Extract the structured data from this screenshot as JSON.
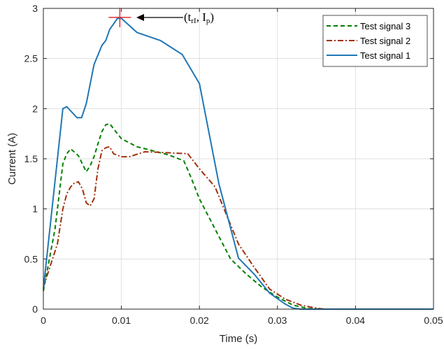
{
  "chart_data": {
    "type": "line",
    "title": "",
    "xlabel": "Time (s)",
    "ylabel": "Current (A)",
    "xlim": [
      0,
      0.05
    ],
    "ylim": [
      0,
      3
    ],
    "xticks": [
      0,
      0.01,
      0.02,
      0.03,
      0.04,
      0.05
    ],
    "xtick_labels": [
      "0",
      "0.01",
      "0.02",
      "0.03",
      "0.04",
      "0.05"
    ],
    "yticks": [
      0,
      0.5,
      1,
      1.5,
      2,
      2.5,
      3
    ],
    "ytick_labels": [
      "0",
      "0.5",
      "1",
      "1.5",
      "2",
      "2.5",
      "3"
    ],
    "grid": true,
    "legend_position": "top-right",
    "series": [
      {
        "name": "Test signal 3",
        "color": "#008000",
        "line_style": "dashed",
        "points": [
          [
            0,
            0.18
          ],
          [
            0.0015,
            0.8
          ],
          [
            0.0025,
            1.45
          ],
          [
            0.003,
            1.55
          ],
          [
            0.0035,
            1.6
          ],
          [
            0.0045,
            1.53
          ],
          [
            0.0055,
            1.37
          ],
          [
            0.006,
            1.43
          ],
          [
            0.0065,
            1.52
          ],
          [
            0.007,
            1.65
          ],
          [
            0.0075,
            1.77
          ],
          [
            0.008,
            1.84
          ],
          [
            0.0085,
            1.85
          ],
          [
            0.009,
            1.8
          ],
          [
            0.01,
            1.7
          ],
          [
            0.012,
            1.62
          ],
          [
            0.014,
            1.58
          ],
          [
            0.016,
            1.54
          ],
          [
            0.018,
            1.48
          ],
          [
            0.019,
            1.3
          ],
          [
            0.02,
            1.1
          ],
          [
            0.022,
            0.8
          ],
          [
            0.024,
            0.5
          ],
          [
            0.026,
            0.35
          ],
          [
            0.028,
            0.22
          ],
          [
            0.03,
            0.12
          ],
          [
            0.032,
            0.04
          ],
          [
            0.034,
            0.005
          ],
          [
            0.036,
            0
          ],
          [
            0.05,
            0
          ]
        ]
      },
      {
        "name": "Test signal 2",
        "color": "#a0300c",
        "line_style": "dashdot",
        "points": [
          [
            0,
            0.22
          ],
          [
            0.0018,
            0.65
          ],
          [
            0.0025,
            1.0
          ],
          [
            0.003,
            1.15
          ],
          [
            0.0035,
            1.22
          ],
          [
            0.004,
            1.26
          ],
          [
            0.0045,
            1.27
          ],
          [
            0.005,
            1.2
          ],
          [
            0.0055,
            1.06
          ],
          [
            0.006,
            1.03
          ],
          [
            0.0065,
            1.1
          ],
          [
            0.007,
            1.4
          ],
          [
            0.0075,
            1.58
          ],
          [
            0.008,
            1.61
          ],
          [
            0.0085,
            1.62
          ],
          [
            0.009,
            1.55
          ],
          [
            0.01,
            1.52
          ],
          [
            0.011,
            1.52
          ],
          [
            0.013,
            1.57
          ],
          [
            0.016,
            1.56
          ],
          [
            0.0185,
            1.55
          ],
          [
            0.02,
            1.4
          ],
          [
            0.022,
            1.22
          ],
          [
            0.025,
            0.65
          ],
          [
            0.027,
            0.42
          ],
          [
            0.029,
            0.2
          ],
          [
            0.031,
            0.1
          ],
          [
            0.033,
            0.04
          ],
          [
            0.035,
            0.01
          ],
          [
            0.036,
            0
          ],
          [
            0.05,
            0
          ]
        ]
      },
      {
        "name": "Test signal 1",
        "color": "#1f77b4",
        "line_style": "solid",
        "points": [
          [
            0,
            0.2
          ],
          [
            0.0025,
            2.0
          ],
          [
            0.003,
            2.02
          ],
          [
            0.0043,
            1.91
          ],
          [
            0.0049,
            1.91
          ],
          [
            0.0055,
            2.05
          ],
          [
            0.0065,
            2.44
          ],
          [
            0.0075,
            2.63
          ],
          [
            0.008,
            2.68
          ],
          [
            0.0085,
            2.79
          ],
          [
            0.0095,
            2.9
          ],
          [
            0.01,
            2.9
          ],
          [
            0.012,
            2.76
          ],
          [
            0.015,
            2.68
          ],
          [
            0.0178,
            2.54
          ],
          [
            0.02,
            2.25
          ],
          [
            0.0225,
            1.25
          ],
          [
            0.025,
            0.51
          ],
          [
            0.027,
            0.35
          ],
          [
            0.029,
            0.16
          ],
          [
            0.031,
            0.05
          ],
          [
            0.032,
            0.01
          ],
          [
            0.033,
            0
          ],
          [
            0.05,
            0
          ]
        ]
      }
    ],
    "peak_marker": {
      "x": 0.0098,
      "y": 2.91,
      "color": "#e03030"
    },
    "annotation": {
      "text_open": "(t",
      "sub1": "rI",
      "text_mid": ", I",
      "sub2": "p",
      "text_close": ")"
    }
  }
}
